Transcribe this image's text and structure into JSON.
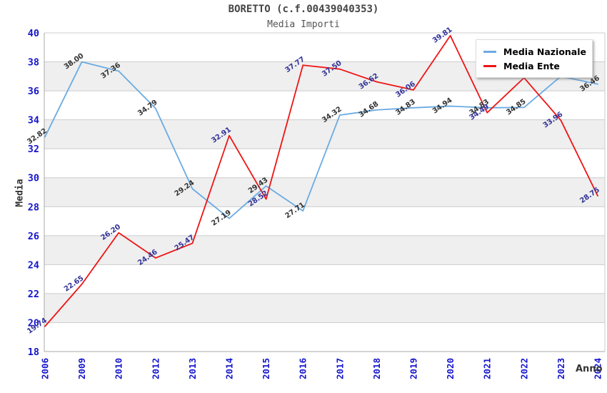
{
  "header": {
    "title": "BORETTO (c.f.00439040353)",
    "subtitle": "Media Importi"
  },
  "axes": {
    "y_label": "Media",
    "x_label": "Anno"
  },
  "legend": {
    "items": [
      {
        "label": "Media Nazionale",
        "color": "#6aabe2"
      },
      {
        "label": "Media Ente",
        "color": "#ee1515"
      }
    ]
  },
  "colors": {
    "band_gray": "#efefef",
    "gridline": "#cccccc",
    "axis_border": "#aaaaaa",
    "tick_text_blue": "#1515cc",
    "label_dark": "#333333",
    "label_navy": "#333399",
    "blue_line": "#6aabe2",
    "red_line": "#ee1515"
  },
  "chart_data": {
    "type": "line",
    "title": "BORETTO (c.f.00439040353)",
    "subtitle": "Media Importi",
    "xlabel": "Anno",
    "ylabel": "Media",
    "categories": [
      "2006",
      "2009",
      "2010",
      "2012",
      "2013",
      "2014",
      "2015",
      "2016",
      "2017",
      "2018",
      "2019",
      "2020",
      "2021",
      "2022",
      "2023",
      "2024"
    ],
    "ylim": [
      18,
      40
    ],
    "y_ticks": [
      18,
      20,
      22,
      24,
      26,
      28,
      30,
      32,
      34,
      36,
      38,
      40
    ],
    "grid": "horizontal gridlines every 2 units with alternating gray bands",
    "legend_position": "top-right",
    "series": [
      {
        "name": "Media Nazionale",
        "color": "#6aabe2",
        "label_color": "#333333",
        "values": [
          32.82,
          38.0,
          37.36,
          34.79,
          29.24,
          27.19,
          29.43,
          27.71,
          34.32,
          34.68,
          34.83,
          34.94,
          34.83,
          34.85,
          37.0,
          36.46
        ],
        "labels": [
          "32.82",
          "38.00",
          "37.36",
          "34.79",
          "29.24",
          "27.19",
          "29.43",
          "27.71",
          "34.32",
          "34.68",
          "34.83",
          "34.94",
          "34.83",
          "34.85",
          null,
          "36.46"
        ]
      },
      {
        "name": "Media Ente",
        "color": "#ee1515",
        "label_color": "#333399",
        "values": [
          19.74,
          22.65,
          26.2,
          24.46,
          25.47,
          32.91,
          28.52,
          37.77,
          37.5,
          36.62,
          36.06,
          39.81,
          34.49,
          36.9,
          33.96,
          28.75
        ],
        "labels": [
          "19.74",
          "22.65",
          "26.20",
          "24.46",
          "25.47",
          "32.91",
          "28.52",
          "37.77",
          "37.50",
          "36.62",
          "36.06",
          "39.81",
          "34.49",
          null,
          "33.96",
          "28.75"
        ]
      }
    ]
  }
}
